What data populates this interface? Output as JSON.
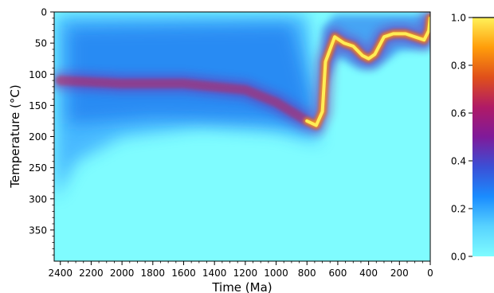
{
  "chart_data": {
    "type": "heatmap",
    "title": "",
    "xlabel": "Time (Ma)",
    "ylabel": "Temperature (°C)",
    "xlim": [
      2440,
      0
    ],
    "ylim": [
      0,
      400
    ],
    "x_inverted": true,
    "y_inverted": true,
    "x_ticks": [
      2400,
      2200,
      2000,
      1800,
      1600,
      1400,
      1200,
      1000,
      800,
      600,
      400,
      200,
      0
    ],
    "y_ticks": [
      0,
      50,
      100,
      150,
      200,
      250,
      300,
      350
    ],
    "colorbar": {
      "range": [
        0.0,
        1.0
      ],
      "ticks": [
        "0.0",
        "0.2",
        "0.4",
        "0.6",
        "0.8",
        "1.0"
      ],
      "colormap_stops": [
        "#7ffcff",
        "#58d3ff",
        "#1a8cff",
        "#3b4fd6",
        "#7f1a9a",
        "#b01a66",
        "#e0501a",
        "#ff9d0a",
        "#fff259"
      ],
      "placement": "right"
    },
    "density_description_series": [
      {
        "name": "",
        "note": "estimated ridge of highest path density (time Ma, temperature °C)",
        "x": [
          2400,
          2000,
          1600,
          1200,
          1000,
          900,
          800,
          740,
          700,
          680,
          620,
          560,
          500,
          440,
          400,
          360,
          300,
          240,
          160,
          100,
          40,
          10,
          0
        ],
        "y": [
          110,
          115,
          115,
          125,
          145,
          160,
          175,
          182,
          160,
          80,
          40,
          50,
          55,
          70,
          75,
          68,
          40,
          35,
          35,
          40,
          45,
          30,
          10
        ]
      }
    ],
    "background_color": "#7ffcff"
  }
}
